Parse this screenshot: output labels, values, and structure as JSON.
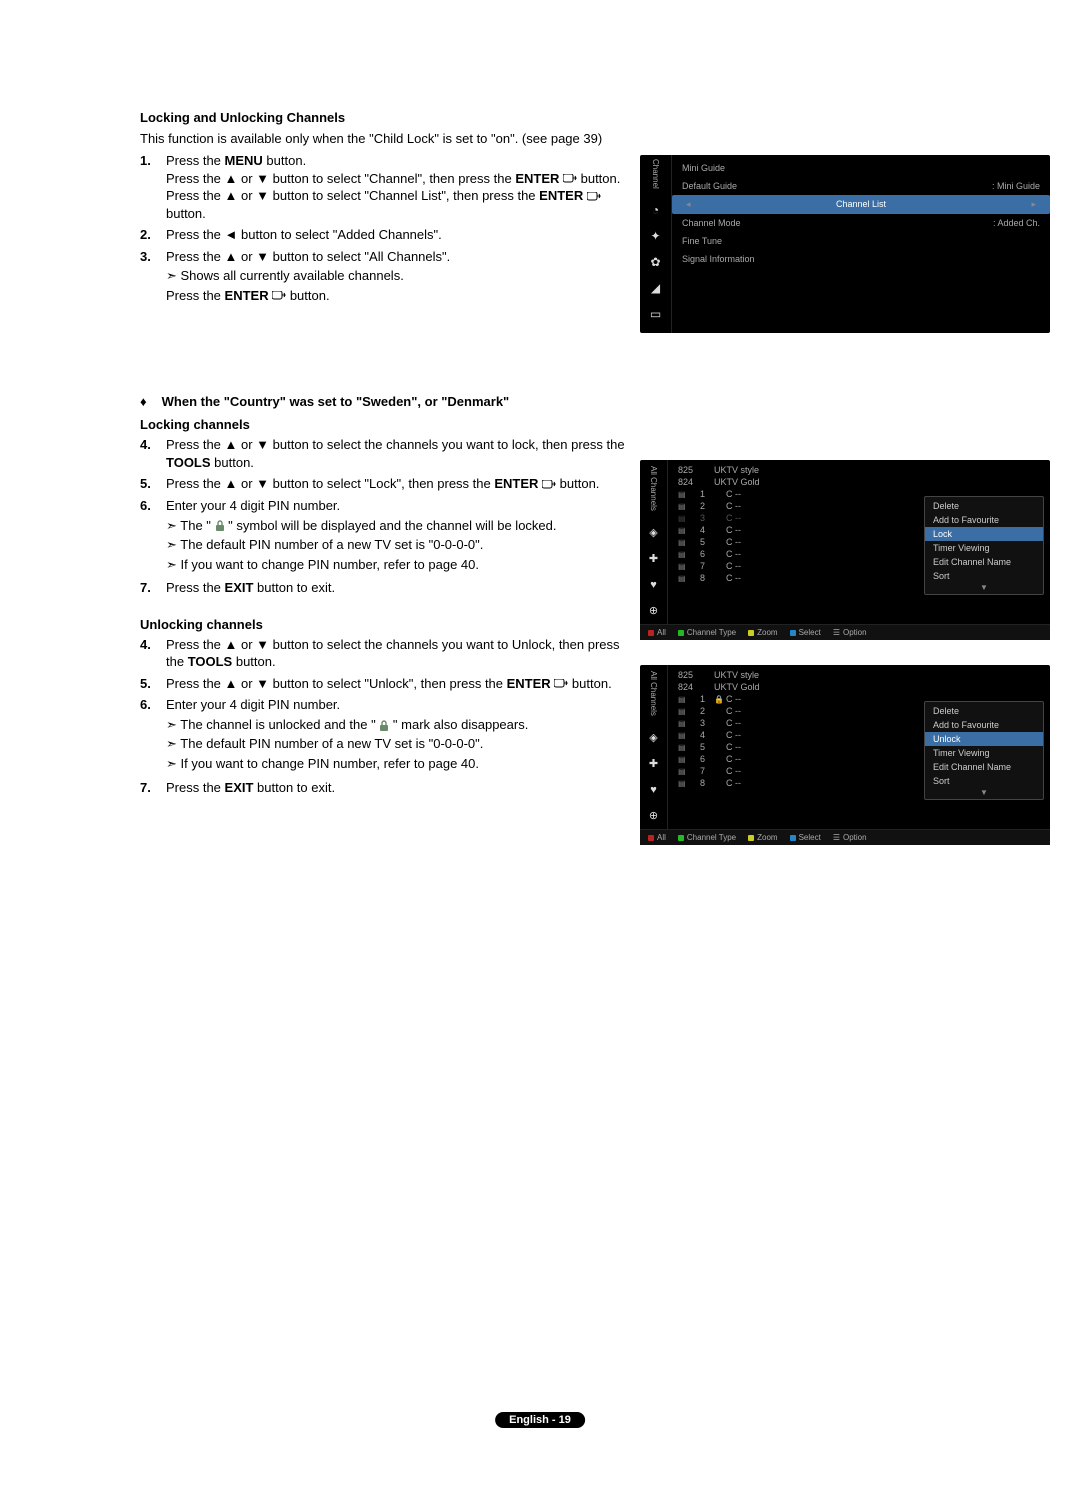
{
  "heading1": "Locking and Unlocking Channels",
  "intro": "This function is available only when the \"Child Lock\" is set to \"on\". (see page 39)",
  "steps_a": [
    {
      "n": "1.",
      "html": "Press the <b>MENU</b> button.<br>Press the ▲ or ▼ button to select \"Channel\", then press the <b>ENTER</b> <svg class='enter-icon' width='14' height='10' viewBox='0 0 14 10'><rect x='0' y='0' width='10' height='8' rx='2' fill='none' stroke='#000' stroke-width='1'/><path d='M10 4 L13 4 L12 2 M13 4 L12 6' fill='none' stroke='#000' stroke-width='1'/></svg> button.<br>Press the ▲ or ▼ button to select \"Channel List\", then press the <b>ENTER</b> <svg class='enter-icon' width='14' height='10' viewBox='0 0 14 10'><rect x='0' y='0' width='10' height='8' rx='2' fill='none' stroke='#000' stroke-width='1'/><path d='M10 4 L13 4 L12 2 M13 4 L12 6' fill='none' stroke='#000' stroke-width='1'/></svg> button."
    },
    {
      "n": "2.",
      "html": "Press the ◄ button to select \"Added Channels\"."
    },
    {
      "n": "3.",
      "html": "Press the ▲ or ▼ button to select \"All Channels\".",
      "sub": [
        "Shows all currently available channels."
      ],
      "after": "Press the <b>ENTER</b> <svg class='enter-icon' width='14' height='10' viewBox='0 0 14 10'><rect x='0' y='0' width='10' height='8' rx='2' fill='none' stroke='#000' stroke-width='1'/><path d='M10 4 L13 4 L12 2 M13 4 L12 6' fill='none' stroke='#000' stroke-width='1'/></svg> button."
    }
  ],
  "diamond_heading": "When the \"Country\" was set to \"Sweden\", or \"Denmark\"",
  "heading_lock": "Locking channels",
  "steps_lock": [
    {
      "n": "4.",
      "html": "Press the ▲ or ▼ button to select the channels you want to lock, then press the <b>TOOLS</b> button."
    },
    {
      "n": "5.",
      "html": "Press the ▲ or ▼ button to select \"Lock\", then press the <b>ENTER</b> <svg class='enter-icon' width='14' height='10' viewBox='0 0 14 10'><rect x='0' y='0' width='10' height='8' rx='2' fill='none' stroke='#000' stroke-width='1'/><path d='M10 4 L13 4 L12 2 M13 4 L12 6' fill='none' stroke='#000' stroke-width='1'/></svg> button."
    },
    {
      "n": "6.",
      "html": "Enter your 4 digit PIN number.",
      "sub": [
        "The \" <svg class='lock-icon' width='10' height='12' viewBox='0 0 10 12'><rect x='1' y='5' width='8' height='6' rx='1' fill='#6a8a6a'/><path d='M3 5 V3 a2 2 0 0 1 4 0 V5' fill='none' stroke='#6a8a6a' stroke-width='1.4'/></svg> \" symbol will be displayed and the channel will be locked.",
        "The default PIN number of a new TV set is \"0-0-0-0\".",
        "If you want to change PIN number, refer to page 40."
      ]
    },
    {
      "n": "7.",
      "html": " Press the <b>EXIT</b> button to exit."
    }
  ],
  "heading_unlock": "Unlocking channels",
  "steps_unlock": [
    {
      "n": "4.",
      "html": "Press the ▲ or ▼ button to select the channels you want to Unlock, then press the <b>TOOLS</b> button."
    },
    {
      "n": "5.",
      "html": "Press the ▲ or ▼ button to select \"Unlock\", then press the <b>ENTER</b> <svg class='enter-icon' width='14' height='10' viewBox='0 0 14 10'><rect x='0' y='0' width='10' height='8' rx='2' fill='none' stroke='#000' stroke-width='1'/><path d='M10 4 L13 4 L12 2 M13 4 L12 6' fill='none' stroke='#000' stroke-width='1'/></svg> button."
    },
    {
      "n": "6.",
      "html": "Enter your 4 digit PIN number.",
      "sub": [
        "The channel is unlocked and the \" <svg class='lock-icon' width='10' height='12' viewBox='0 0 10 12'><rect x='1' y='5' width='8' height='6' rx='1' fill='#6a8a6a'/><path d='M3 5 V3 a2 2 0 0 1 4 0 V5' fill='none' stroke='#6a8a6a' stroke-width='1.4'/></svg> \" mark also disappears.",
        "The default PIN number of a new TV set is \"0-0-0-0\".",
        "If you want to change PIN number, refer to page 40."
      ]
    },
    {
      "n": "7.",
      "html": "Press the <b>EXIT</b> button to exit."
    }
  ],
  "pagenum": "English - 19",
  "shot1": {
    "sidebar_label": "Channel",
    "menu": [
      {
        "l": "Mini Guide",
        "r": ""
      },
      {
        "l": "Default Guide",
        "r": ": Mini Guide"
      },
      {
        "l": "Channel List",
        "r": "",
        "sel": true
      },
      {
        "l": "Channel Mode",
        "r": ": Added Ch."
      },
      {
        "l": "Fine Tune",
        "r": ""
      },
      {
        "l": "Signal Information",
        "r": ""
      }
    ]
  },
  "shot2": {
    "sidebar_label": "All Channels",
    "headers": [
      {
        "n": "824",
        "name": "UKTV Gold"
      },
      {
        "n": "825",
        "name": "UKTV style"
      }
    ],
    "rows": [
      {
        "i": "1",
        "lock": "",
        "name": "C --"
      },
      {
        "i": "2",
        "lock": "",
        "name": "C --"
      },
      {
        "i": "3",
        "lock": "",
        "name": "C --",
        "dim": true
      },
      {
        "i": "4",
        "lock": "",
        "name": "C --"
      },
      {
        "i": "5",
        "lock": "",
        "name": "C --"
      },
      {
        "i": "6",
        "lock": "",
        "name": "C --"
      },
      {
        "i": "7",
        "lock": "",
        "name": "C --"
      },
      {
        "i": "8",
        "lock": "",
        "name": "C --"
      }
    ],
    "popup": [
      "Delete",
      "Add to Favourite",
      "Lock",
      "Timer Viewing",
      "Edit Channel Name",
      "Sort"
    ],
    "popup_sel": "Lock",
    "footer": [
      {
        "c": "#b22",
        "t": "All"
      },
      {
        "c": "#2b2",
        "t": "Channel Type"
      },
      {
        "c": "#cc2",
        "t": "Zoom"
      },
      {
        "c": "#28c",
        "t": "Select"
      },
      {
        "c": "#888",
        "t": "Option",
        "icon": "☰"
      }
    ]
  },
  "shot3": {
    "sidebar_label": "All Channels",
    "headers": [
      {
        "n": "824",
        "name": "UKTV Gold"
      },
      {
        "n": "825",
        "name": "UKTV style"
      }
    ],
    "rows": [
      {
        "i": "1",
        "lock": "🔒",
        "name": "C --"
      },
      {
        "i": "2",
        "lock": "",
        "name": "C --"
      },
      {
        "i": "3",
        "lock": "",
        "name": "C --"
      },
      {
        "i": "4",
        "lock": "",
        "name": "C --"
      },
      {
        "i": "5",
        "lock": "",
        "name": "C --"
      },
      {
        "i": "6",
        "lock": "",
        "name": "C --"
      },
      {
        "i": "7",
        "lock": "",
        "name": "C --"
      },
      {
        "i": "8",
        "lock": "",
        "name": "C --"
      }
    ],
    "popup": [
      "Delete",
      "Add to Favourite",
      "Unlock",
      "Timer Viewing",
      "Edit Channel Name",
      "Sort"
    ],
    "popup_sel": "Unlock",
    "footer": [
      {
        "c": "#b22",
        "t": "All"
      },
      {
        "c": "#2b2",
        "t": "Channel Type"
      },
      {
        "c": "#cc2",
        "t": "Zoom"
      },
      {
        "c": "#28c",
        "t": "Select"
      },
      {
        "c": "#888",
        "t": "Option",
        "icon": "☰"
      }
    ]
  }
}
